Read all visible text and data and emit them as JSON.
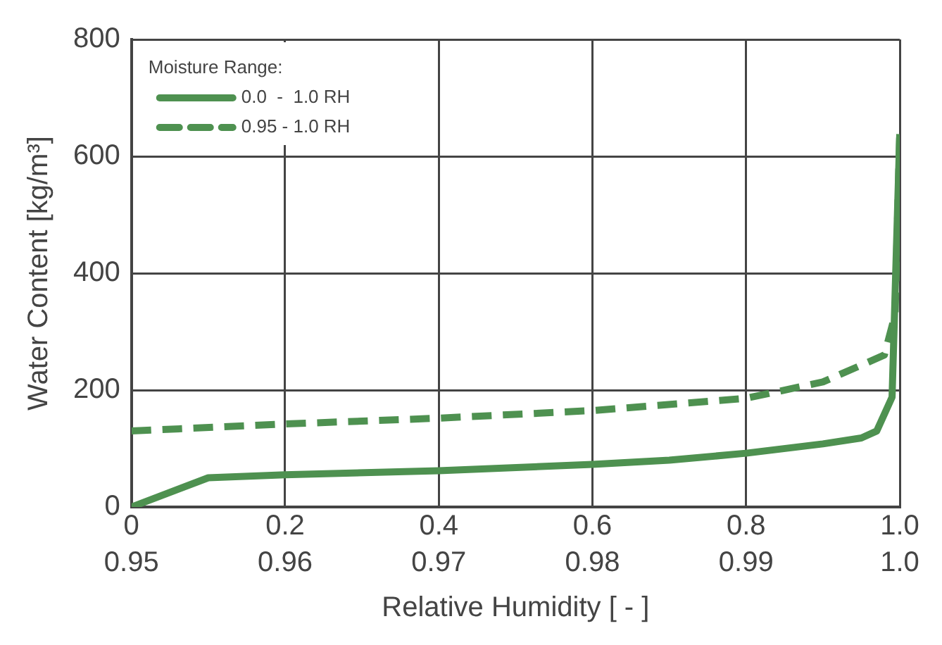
{
  "chart_data": {
    "type": "line",
    "xlabel": "Relative Humidity [ - ]",
    "ylabel": "Water Content [kg/m³]",
    "legend_title": "Moisture Range:",
    "legend": "top left",
    "grid": true,
    "marker": "none",
    "xlim": [
      0,
      1
    ],
    "xticks": [
      0,
      0.2,
      0.4,
      0.6,
      0.8,
      {
        "value": 1,
        "label": "1.0"
      }
    ],
    "x2lim": [
      0.95,
      1
    ],
    "x2ticks": [
      0.95,
      0.96,
      0.97,
      0.98,
      0.99,
      {
        "value": 1,
        "label": "1.0"
      }
    ],
    "ylim": [
      0,
      800
    ],
    "yticks": [
      0,
      200,
      400,
      600,
      800
    ],
    "series": [
      {
        "name": "0.0  -  1.0 RH",
        "color": "#4e9150",
        "line_style": "solid",
        "x": [
          0,
          0.1,
          0.2,
          0.4,
          0.6,
          0.7,
          0.8,
          0.9,
          0.95,
          0.97,
          0.99,
          1.0
        ],
        "values": [
          0,
          50,
          55,
          62,
          73,
          80,
          92,
          108,
          118,
          130,
          188,
          638
        ]
      },
      {
        "name": "0.95 - 1.0 RH",
        "color": "#4e9150",
        "line_style": "dashed",
        "axis": "x2",
        "x": [
          0.95,
          0.96,
          0.97,
          0.98,
          0.99,
          0.995,
          0.999,
          0.9997,
          1.0
        ],
        "values": [
          130,
          142,
          152,
          165,
          186,
          214,
          260,
          330,
          640
        ]
      }
    ]
  }
}
